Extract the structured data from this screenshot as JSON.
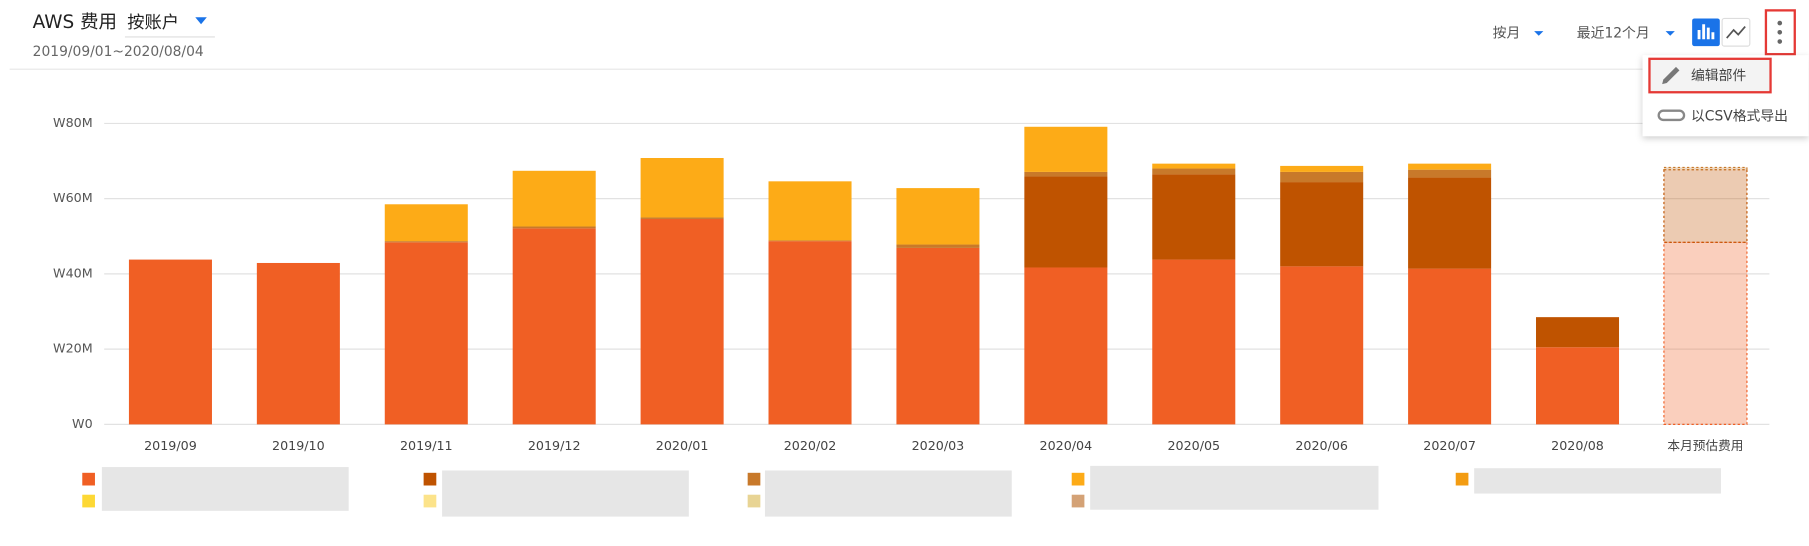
{
  "header": {
    "title": "AWS 费用",
    "group_by": "按账户",
    "date_range": "2019/09/01~2020/08/04"
  },
  "controls": {
    "period": "按月",
    "range": "最近12个月"
  },
  "menu": {
    "items": [
      "编辑部件",
      "以CSV格式导出"
    ]
  },
  "chart_data": {
    "type": "stacked_bar",
    "categories": [
      "2019/09",
      "2019/10",
      "2019/11",
      "2019/12",
      "2020/01",
      "2020/02",
      "2020/03",
      "2020/04",
      "2020/05",
      "2020/06",
      "2020/07",
      "2020/08",
      "本月预估费用"
    ],
    "series": [
      {
        "color": "#f05f24",
        "values": [
          43.8,
          42.9,
          48.4,
          52.1,
          54.6,
          48.7,
          46.9,
          41.7,
          43.8,
          42.0,
          41.4,
          20.5,
          48.4
        ]
      },
      {
        "color": "#bf5300",
        "values": [
          null,
          null,
          null,
          null,
          null,
          null,
          null,
          24.2,
          22.7,
          22.4,
          24.2,
          8.0,
          19.3
        ]
      },
      {
        "color": "#c8792a",
        "values": [
          null,
          null,
          0.3,
          0.5,
          0.4,
          0.2,
          0.9,
          1.2,
          1.5,
          2.7,
          2.1,
          null,
          0.6
        ]
      },
      {
        "color": "#fdab17",
        "values": [
          null,
          null,
          9.8,
          14.8,
          15.8,
          15.7,
          15.0,
          12.0,
          1.3,
          1.6,
          1.6,
          null,
          null
        ]
      },
      {
        "color": "#f39c12",
        "values": [
          null,
          null,
          null,
          null,
          null,
          null,
          null,
          null,
          null,
          null,
          null,
          null,
          null
        ]
      },
      {
        "color": "#fdd835",
        "values": [
          null,
          null,
          null,
          null,
          null,
          null,
          null,
          null,
          null,
          null,
          null,
          null,
          null
        ]
      },
      {
        "color": "#fce38a",
        "values": [
          null,
          null,
          null,
          null,
          null,
          null,
          null,
          null,
          null,
          null,
          null,
          null,
          null
        ]
      },
      {
        "color": "#e8d494",
        "values": [
          null,
          null,
          null,
          null,
          null,
          null,
          null,
          null,
          null,
          null,
          null,
          null,
          null
        ]
      },
      {
        "color": "#d4a276",
        "values": [
          null,
          null,
          null,
          null,
          null,
          null,
          null,
          null,
          null,
          null,
          null,
          null,
          null
        ]
      }
    ],
    "ylim": [
      0,
      80
    ],
    "yticks": [
      {
        "value": 0,
        "label": "W0"
      },
      {
        "value": 20,
        "label": "W20M"
      },
      {
        "value": 40,
        "label": "W40M"
      },
      {
        "value": 60,
        "label": "W60M"
      },
      {
        "value": 80,
        "label": "W80M"
      }
    ],
    "grid": true,
    "last_category_estimate": true
  }
}
